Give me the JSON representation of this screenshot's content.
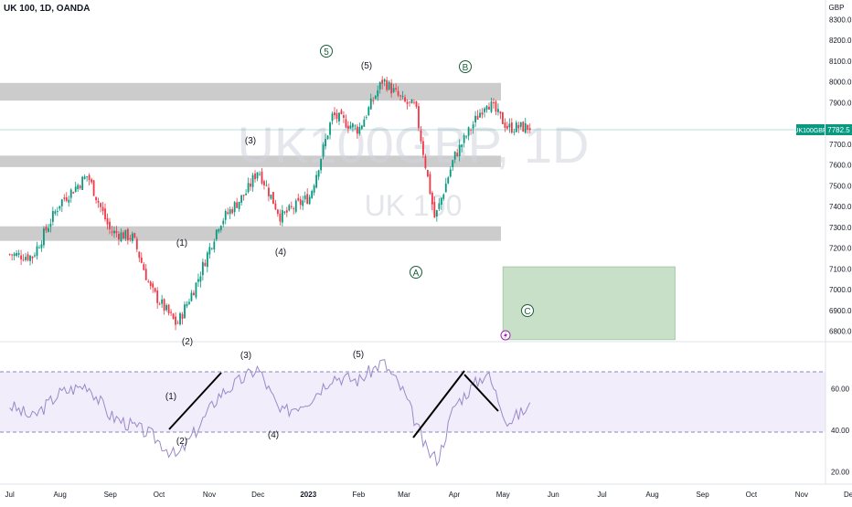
{
  "header": {
    "symbol_title": "UK 100, 1D, OANDA",
    "currency": "GBP"
  },
  "watermark": {
    "main": "UK100GBP, 1D",
    "sub": "UK 100"
  },
  "price_tag": {
    "symbol": "UK100GBP",
    "value": "7782.5",
    "color": "#089981"
  },
  "colors": {
    "up": "#089981",
    "down": "#f23645",
    "zone_gray": "#cccccc",
    "target_box": "#c8dfc8",
    "rsi_line": "#9c89c9",
    "rsi_band": "#f1edfb",
    "wave_labels": "#1b5e3b"
  },
  "price_axis": {
    "ticks": [
      "8300.0",
      "8200.0",
      "8100.0",
      "8000.0",
      "7900.0",
      "7700.0",
      "7600.0",
      "7500.0",
      "7400.0",
      "7300.0",
      "7200.0",
      "7100.0",
      "7000.0",
      "6900.0",
      "6800.0"
    ]
  },
  "rsi_axis": {
    "ticks": [
      "60.00",
      "40.00",
      "20.00"
    ]
  },
  "time_axis": {
    "ticks": [
      "Jul",
      "Aug",
      "Sep",
      "Oct",
      "Nov",
      "Dec",
      "2023",
      "Feb",
      "Mar",
      "Apr",
      "May",
      "Jun",
      "Jul",
      "Aug",
      "Sep",
      "Oct",
      "Nov",
      "Dec"
    ]
  },
  "wave_labels": {
    "price": {
      "w1": "(1)",
      "w2": "(2)",
      "w3": "(3)",
      "w4": "(4)",
      "w5": "(5)",
      "c5": "5",
      "ca": "A",
      "cb": "B",
      "cc": "C"
    },
    "rsi": {
      "w1": "(1)",
      "w2": "(2)",
      "w3": "(3)",
      "w4": "(4)",
      "w5": "(5)"
    }
  },
  "chart_data": {
    "type": "candlestick",
    "title": "UK 100, 1D, OANDA",
    "ylabel": "GBP",
    "ylim": [
      6750,
      8350
    ],
    "last_price": 7782.5,
    "price_close_trace": [
      [
        "2022-07-01",
        7170
      ],
      [
        "2022-07-15",
        7160
      ],
      [
        "2022-08-01",
        7420
      ],
      [
        "2022-08-18",
        7550
      ],
      [
        "2022-09-01",
        7280
      ],
      [
        "2022-09-15",
        7250
      ],
      [
        "2022-09-26",
        7000
      ],
      [
        "2022-10-12",
        6830
      ],
      [
        "2022-10-24",
        7030
      ],
      [
        "2022-11-07",
        7320
      ],
      [
        "2022-11-24",
        7470
      ],
      [
        "2022-12-01",
        7580
      ],
      [
        "2022-12-15",
        7350
      ],
      [
        "2023-01-02",
        7450
      ],
      [
        "2023-01-16",
        7840
      ],
      [
        "2023-02-01",
        7770
      ],
      [
        "2023-02-16",
        8010
      ],
      [
        "2023-03-01",
        7900
      ],
      [
        "2023-03-08",
        7880
      ],
      [
        "2023-03-20",
        7340
      ],
      [
        "2023-04-01",
        7640
      ],
      [
        "2023-04-21",
        7910
      ],
      [
        "2023-05-04",
        7780
      ],
      [
        "2023-05-19",
        7782.5
      ]
    ],
    "horizontal_zones": [
      {
        "from": 7910,
        "to": 7995
      },
      {
        "from": 7590,
        "to": 7645
      },
      {
        "from": 7235,
        "to": 7305
      }
    ],
    "target_box": {
      "from_date": "2023-05-01",
      "to_date": "2023-08-15",
      "from": 6760,
      "to": 7110
    },
    "rsi": {
      "ylim": [
        15,
        80
      ],
      "upper_band": 70,
      "lower_band": 30,
      "trace": [
        [
          "2022-07-01",
          52
        ],
        [
          "2022-07-15",
          46
        ],
        [
          "2022-08-01",
          58
        ],
        [
          "2022-08-18",
          62
        ],
        [
          "2022-09-01",
          47
        ],
        [
          "2022-09-26",
          38
        ],
        [
          "2022-10-12",
          27
        ],
        [
          "2022-10-24",
          40
        ],
        [
          "2022-11-07",
          57
        ],
        [
          "2022-11-24",
          66
        ],
        [
          "2022-12-01",
          70
        ],
        [
          "2022-12-15",
          48
        ],
        [
          "2023-01-02",
          55
        ],
        [
          "2023-01-16",
          66
        ],
        [
          "2023-02-01",
          64
        ],
        [
          "2023-02-16",
          73
        ],
        [
          "2023-03-01",
          58
        ],
        [
          "2023-03-15",
          30
        ],
        [
          "2023-03-22",
          26
        ],
        [
          "2023-04-01",
          52
        ],
        [
          "2023-04-21",
          68
        ],
        [
          "2023-05-04",
          44
        ],
        [
          "2023-05-19",
          52
        ]
      ]
    }
  }
}
